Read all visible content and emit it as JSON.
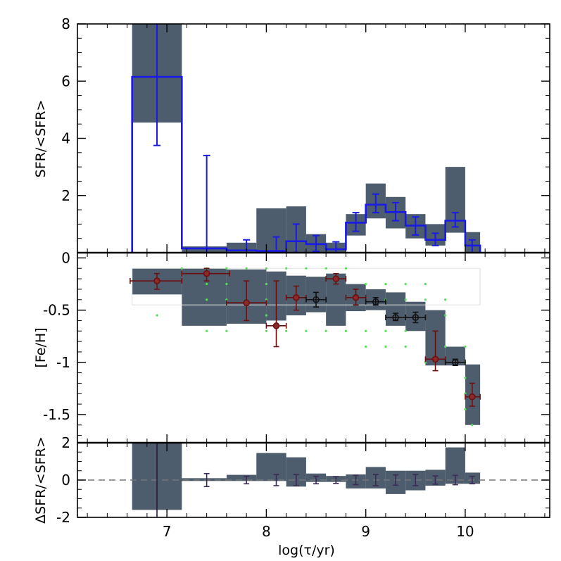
{
  "chart_data": {
    "type": "multi-panel",
    "x_axis": {
      "label": "log(τ/yr)",
      "range": [
        6.1,
        10.85
      ],
      "ticks": [
        "7",
        "8",
        "9",
        "10"
      ],
      "tick_values": [
        7,
        8,
        9,
        10
      ]
    },
    "colors": {
      "band": "#4d5d6d",
      "sfr_line": "#1a1ae6",
      "metal_red": "#6b1010",
      "metal_black": "#111111",
      "green_dots": "#55e055",
      "dashed": "#777777",
      "resid_err": "#3a2a55"
    },
    "panels": [
      {
        "name": "sfr",
        "ylabel": "SFR/<SFR>",
        "ylim": [
          0,
          8
        ],
        "yticks": [
          "2",
          "4",
          "6",
          "8"
        ],
        "ytick_values": [
          2,
          4,
          6,
          8
        ],
        "band": [
          {
            "x0": 6.65,
            "x1": 7.15,
            "lo": 4.55,
            "hi": 8.0
          },
          {
            "x0": 7.15,
            "x1": 7.6,
            "lo": 0.0,
            "hi": 0.22
          },
          {
            "x0": 7.6,
            "x1": 7.9,
            "lo": 0.0,
            "hi": 0.35
          },
          {
            "x0": 7.9,
            "x1": 8.2,
            "lo": 0.0,
            "hi": 1.55
          },
          {
            "x0": 8.2,
            "x1": 8.4,
            "lo": 0.0,
            "hi": 1.62
          },
          {
            "x0": 8.4,
            "x1": 8.6,
            "lo": 0.0,
            "hi": 0.65
          },
          {
            "x0": 8.6,
            "x1": 8.8,
            "lo": 0.0,
            "hi": 0.35
          },
          {
            "x0": 8.8,
            "x1": 9.0,
            "lo": 0.6,
            "hi": 1.35
          },
          {
            "x0": 9.0,
            "x1": 9.2,
            "lo": 1.2,
            "hi": 2.42
          },
          {
            "x0": 9.2,
            "x1": 9.4,
            "lo": 0.85,
            "hi": 1.95
          },
          {
            "x0": 9.4,
            "x1": 9.6,
            "lo": 0.5,
            "hi": 1.35
          },
          {
            "x0": 9.6,
            "x1": 9.8,
            "lo": 0.25,
            "hi": 1.0
          },
          {
            "x0": 9.8,
            "x1": 10.0,
            "lo": 0.7,
            "hi": 3.0
          },
          {
            "x0": 10.0,
            "x1": 10.15,
            "lo": 0.0,
            "hi": 0.72
          }
        ],
        "step_values": [
          {
            "x0": 6.65,
            "x1": 7.15,
            "y": 6.15
          },
          {
            "x0": 7.15,
            "x1": 7.6,
            "y": 0.15
          },
          {
            "x0": 7.6,
            "x1": 7.9,
            "y": 0.08
          },
          {
            "x0": 7.9,
            "x1": 8.2,
            "y": 0.06
          },
          {
            "x0": 8.2,
            "x1": 8.4,
            "y": 0.4
          },
          {
            "x0": 8.4,
            "x1": 8.6,
            "y": 0.3
          },
          {
            "x0": 8.6,
            "x1": 8.8,
            "y": 0.12
          },
          {
            "x0": 8.8,
            "x1": 9.0,
            "y": 1.05
          },
          {
            "x0": 9.0,
            "x1": 9.2,
            "y": 1.68
          },
          {
            "x0": 9.2,
            "x1": 9.4,
            "y": 1.42
          },
          {
            "x0": 9.4,
            "x1": 9.6,
            "y": 0.95
          },
          {
            "x0": 9.6,
            "x1": 9.8,
            "y": 0.45
          },
          {
            "x0": 9.8,
            "x1": 10.0,
            "y": 1.12
          },
          {
            "x0": 10.0,
            "x1": 10.15,
            "y": 0.25
          }
        ],
        "errorbars": [
          {
            "x": 6.9,
            "y": 6.15,
            "lo": 3.75,
            "hi": 8.0,
            "xerr": 0.25
          },
          {
            "x": 7.4,
            "y": 0.15,
            "lo": 0.0,
            "hi": 3.4
          },
          {
            "x": 7.8,
            "y": 0.08,
            "lo": 0.0,
            "hi": 0.45
          },
          {
            "x": 8.1,
            "y": 0.06,
            "lo": 0.0,
            "hi": 0.55
          },
          {
            "x": 8.3,
            "y": 0.4,
            "lo": 0.0,
            "hi": 1.0
          },
          {
            "x": 8.5,
            "y": 0.3,
            "lo": 0.05,
            "hi": 0.6
          },
          {
            "x": 8.7,
            "y": 0.12,
            "lo": 0.0,
            "hi": 0.38
          },
          {
            "x": 8.9,
            "y": 1.05,
            "lo": 0.75,
            "hi": 1.4
          },
          {
            "x": 9.1,
            "y": 1.68,
            "lo": 1.4,
            "hi": 2.05
          },
          {
            "x": 9.3,
            "y": 1.42,
            "lo": 1.12,
            "hi": 1.75
          },
          {
            "x": 9.5,
            "y": 0.95,
            "lo": 0.62,
            "hi": 1.25
          },
          {
            "x": 9.7,
            "y": 0.45,
            "lo": 0.25,
            "hi": 0.68
          },
          {
            "x": 9.9,
            "y": 1.12,
            "lo": 0.9,
            "hi": 1.4
          },
          {
            "x": 10.07,
            "y": 0.25,
            "lo": 0.0,
            "hi": 0.45
          }
        ]
      },
      {
        "name": "metallicity",
        "ylabel": "[Fe/H]",
        "ylim": [
          -1.77,
          0.05
        ],
        "yticks": [
          "0",
          "-0.5",
          "-1",
          "-1.5"
        ],
        "ytick_values": [
          0,
          -0.5,
          -1,
          -1.5
        ],
        "band": [
          {
            "x0": 6.65,
            "x1": 7.15,
            "lo": -0.35,
            "hi": -0.1
          },
          {
            "x0": 7.15,
            "x1": 7.6,
            "lo": -0.65,
            "hi": -0.1
          },
          {
            "x0": 7.6,
            "x1": 8.0,
            "lo": -0.63,
            "hi": -0.11
          },
          {
            "x0": 8.0,
            "x1": 8.2,
            "lo": -0.6,
            "hi": -0.13
          },
          {
            "x0": 8.2,
            "x1": 8.4,
            "lo": -0.55,
            "hi": -0.17
          },
          {
            "x0": 8.4,
            "x1": 8.6,
            "lo": -0.52,
            "hi": -0.18
          },
          {
            "x0": 8.6,
            "x1": 8.8,
            "lo": -0.65,
            "hi": -0.15
          },
          {
            "x0": 8.8,
            "x1": 9.0,
            "lo": -0.51,
            "hi": -0.25
          },
          {
            "x0": 9.0,
            "x1": 9.2,
            "lo": -0.5,
            "hi": -0.3
          },
          {
            "x0": 9.2,
            "x1": 9.4,
            "lo": -0.65,
            "hi": -0.33
          },
          {
            "x0": 9.4,
            "x1": 9.6,
            "lo": -0.7,
            "hi": -0.42
          },
          {
            "x0": 9.6,
            "x1": 9.8,
            "lo": -1.03,
            "hi": -0.5
          },
          {
            "x0": 9.8,
            "x1": 10.0,
            "lo": -1.03,
            "hi": -0.85
          },
          {
            "x0": 10.0,
            "x1": 10.15,
            "lo": -1.6,
            "hi": -1.02
          }
        ],
        "red_points": [
          {
            "x": 6.9,
            "y": -0.22,
            "xlo": 6.63,
            "xhi": 7.15,
            "ylo": -0.3,
            "yhi": -0.15
          },
          {
            "x": 7.4,
            "y": -0.15,
            "xlo": 7.15,
            "xhi": 7.63,
            "ylo": -0.22,
            "yhi": -0.1
          },
          {
            "x": 7.8,
            "y": -0.43,
            "xlo": 7.6,
            "xhi": 8.0,
            "ylo": -0.6,
            "yhi": -0.22
          },
          {
            "x": 8.1,
            "y": -0.65,
            "xlo": 8.0,
            "xhi": 8.2,
            "ylo": -0.85,
            "yhi": -0.22
          },
          {
            "x": 8.3,
            "y": -0.38,
            "xlo": 8.2,
            "xhi": 8.4,
            "ylo": -0.5,
            "yhi": -0.27
          },
          {
            "x": 8.7,
            "y": -0.2,
            "xlo": 8.6,
            "xhi": 8.8,
            "ylo": -0.25,
            "yhi": -0.15
          },
          {
            "x": 8.9,
            "y": -0.38,
            "xlo": 8.8,
            "xhi": 9.0,
            "ylo": -0.45,
            "yhi": -0.3
          },
          {
            "x": 9.7,
            "y": -0.97,
            "xlo": 9.6,
            "xhi": 9.8,
            "ylo": -1.08,
            "yhi": -0.7
          },
          {
            "x": 10.07,
            "y": -1.33,
            "xlo": 10.0,
            "xhi": 10.15,
            "ylo": -1.42,
            "yhi": -1.2
          }
        ],
        "black_points": [
          {
            "x": 8.5,
            "y": -0.4,
            "xlo": 8.4,
            "xhi": 8.6,
            "ylo": -0.47,
            "yhi": -0.33
          },
          {
            "x": 9.1,
            "y": -0.42,
            "xlo": 9.0,
            "xhi": 9.2,
            "ylo": -0.45,
            "yhi": -0.38
          },
          {
            "x": 9.3,
            "y": -0.57,
            "xlo": 9.2,
            "xhi": 9.4,
            "ylo": -0.6,
            "yhi": -0.53
          },
          {
            "x": 9.5,
            "y": -0.57,
            "xlo": 9.4,
            "xhi": 9.6,
            "ylo": -0.62,
            "yhi": -0.52
          },
          {
            "x": 9.9,
            "y": -1.0,
            "xlo": 9.8,
            "xhi": 10.0,
            "ylo": -1.03,
            "yhi": -0.97
          }
        ],
        "green_dots": [
          {
            "x": 7.15,
            "y": -0.1
          },
          {
            "x": 7.4,
            "y": -0.1
          },
          {
            "x": 7.6,
            "y": -0.1
          },
          {
            "x": 7.8,
            "y": -0.1
          },
          {
            "x": 8.0,
            "y": -0.1
          },
          {
            "x": 8.2,
            "y": -0.1
          },
          {
            "x": 8.4,
            "y": -0.1
          },
          {
            "x": 8.6,
            "y": -0.1
          },
          {
            "x": 8.8,
            "y": -0.1
          },
          {
            "x": 7.4,
            "y": -0.25
          },
          {
            "x": 7.6,
            "y": -0.25
          },
          {
            "x": 8.0,
            "y": -0.25
          },
          {
            "x": 9.0,
            "y": -0.25
          },
          {
            "x": 9.2,
            "y": -0.25
          },
          {
            "x": 9.4,
            "y": -0.25
          },
          {
            "x": 9.6,
            "y": -0.25
          },
          {
            "x": 7.4,
            "y": -0.4
          },
          {
            "x": 7.6,
            "y": -0.4
          },
          {
            "x": 8.0,
            "y": -0.4
          },
          {
            "x": 9.2,
            "y": -0.4
          },
          {
            "x": 9.4,
            "y": -0.4
          },
          {
            "x": 9.6,
            "y": -0.4
          },
          {
            "x": 9.8,
            "y": -0.4
          },
          {
            "x": 6.9,
            "y": -0.55
          },
          {
            "x": 8.0,
            "y": -0.55
          },
          {
            "x": 9.8,
            "y": -0.55
          },
          {
            "x": 7.4,
            "y": -0.7
          },
          {
            "x": 7.6,
            "y": -0.7
          },
          {
            "x": 8.0,
            "y": -0.7
          },
          {
            "x": 8.2,
            "y": -0.7
          },
          {
            "x": 8.4,
            "y": -0.7
          },
          {
            "x": 8.6,
            "y": -0.7
          },
          {
            "x": 8.8,
            "y": -0.7
          },
          {
            "x": 9.0,
            "y": -0.7
          },
          {
            "x": 9.2,
            "y": -0.7
          },
          {
            "x": 9.4,
            "y": -0.7
          },
          {
            "x": 9.0,
            "y": -0.85
          },
          {
            "x": 9.2,
            "y": -0.85
          },
          {
            "x": 9.4,
            "y": -0.85
          },
          {
            "x": 9.8,
            "y": -0.85
          },
          {
            "x": 10.0,
            "y": -0.85
          },
          {
            "x": 9.6,
            "y": -1.0
          },
          {
            "x": 10.0,
            "y": -1.0
          },
          {
            "x": 10.0,
            "y": -1.15
          },
          {
            "x": 10.0,
            "y": -1.3
          },
          {
            "x": 10.0,
            "y": -1.45
          },
          {
            "x": 10.07,
            "y": -1.6
          }
        ]
      },
      {
        "name": "residual",
        "ylabel": "ΔSFR/<SFR>",
        "ylim": [
          -2,
          2
        ],
        "yticks": [
          "2",
          "0",
          "-2"
        ],
        "ytick_values": [
          2,
          0,
          -2
        ],
        "dashed_y": 0,
        "band": [
          {
            "x0": 6.65,
            "x1": 7.15,
            "lo": -1.6,
            "hi": 2.0
          },
          {
            "x0": 7.15,
            "x1": 7.6,
            "lo": -0.05,
            "hi": 0.1
          },
          {
            "x0": 7.6,
            "x1": 7.9,
            "lo": -0.05,
            "hi": 0.28
          },
          {
            "x0": 7.9,
            "x1": 8.2,
            "lo": -0.05,
            "hi": 1.45
          },
          {
            "x0": 8.2,
            "x1": 8.4,
            "lo": -0.35,
            "hi": 1.22
          },
          {
            "x0": 8.4,
            "x1": 8.6,
            "lo": -0.1,
            "hi": 0.35
          },
          {
            "x0": 8.6,
            "x1": 8.8,
            "lo": -0.1,
            "hi": 0.22
          },
          {
            "x0": 8.8,
            "x1": 9.0,
            "lo": -0.45,
            "hi": 0.3
          },
          {
            "x0": 9.0,
            "x1": 9.2,
            "lo": -0.45,
            "hi": 0.7
          },
          {
            "x0": 9.2,
            "x1": 9.4,
            "lo": -0.75,
            "hi": 0.5
          },
          {
            "x0": 9.4,
            "x1": 9.6,
            "lo": -0.55,
            "hi": 0.5
          },
          {
            "x0": 9.6,
            "x1": 9.8,
            "lo": -0.3,
            "hi": 0.55
          },
          {
            "x0": 9.8,
            "x1": 10.0,
            "lo": -0.2,
            "hi": 1.75
          },
          {
            "x0": 10.0,
            "x1": 10.15,
            "lo": -0.2,
            "hi": 0.4
          }
        ],
        "errorbars": [
          {
            "x": 6.9,
            "lo": -2.0,
            "hi": 2.0
          },
          {
            "x": 7.4,
            "lo": -0.35,
            "hi": 0.35
          },
          {
            "x": 7.8,
            "lo": -0.2,
            "hi": 0.2
          },
          {
            "x": 8.1,
            "lo": -0.3,
            "hi": 0.3
          },
          {
            "x": 8.3,
            "lo": -0.3,
            "hi": 0.3
          },
          {
            "x": 8.5,
            "lo": -0.2,
            "hi": 0.2
          },
          {
            "x": 8.7,
            "lo": -0.18,
            "hi": 0.18
          },
          {
            "x": 8.9,
            "lo": -0.25,
            "hi": 0.25
          },
          {
            "x": 9.1,
            "lo": -0.3,
            "hi": 0.3
          },
          {
            "x": 9.3,
            "lo": -0.28,
            "hi": 0.28
          },
          {
            "x": 9.5,
            "lo": -0.3,
            "hi": 0.3
          },
          {
            "x": 9.7,
            "lo": -0.22,
            "hi": 0.22
          },
          {
            "x": 9.9,
            "lo": -0.25,
            "hi": 0.25
          },
          {
            "x": 10.07,
            "lo": -0.2,
            "hi": 0.2
          }
        ]
      }
    ]
  }
}
